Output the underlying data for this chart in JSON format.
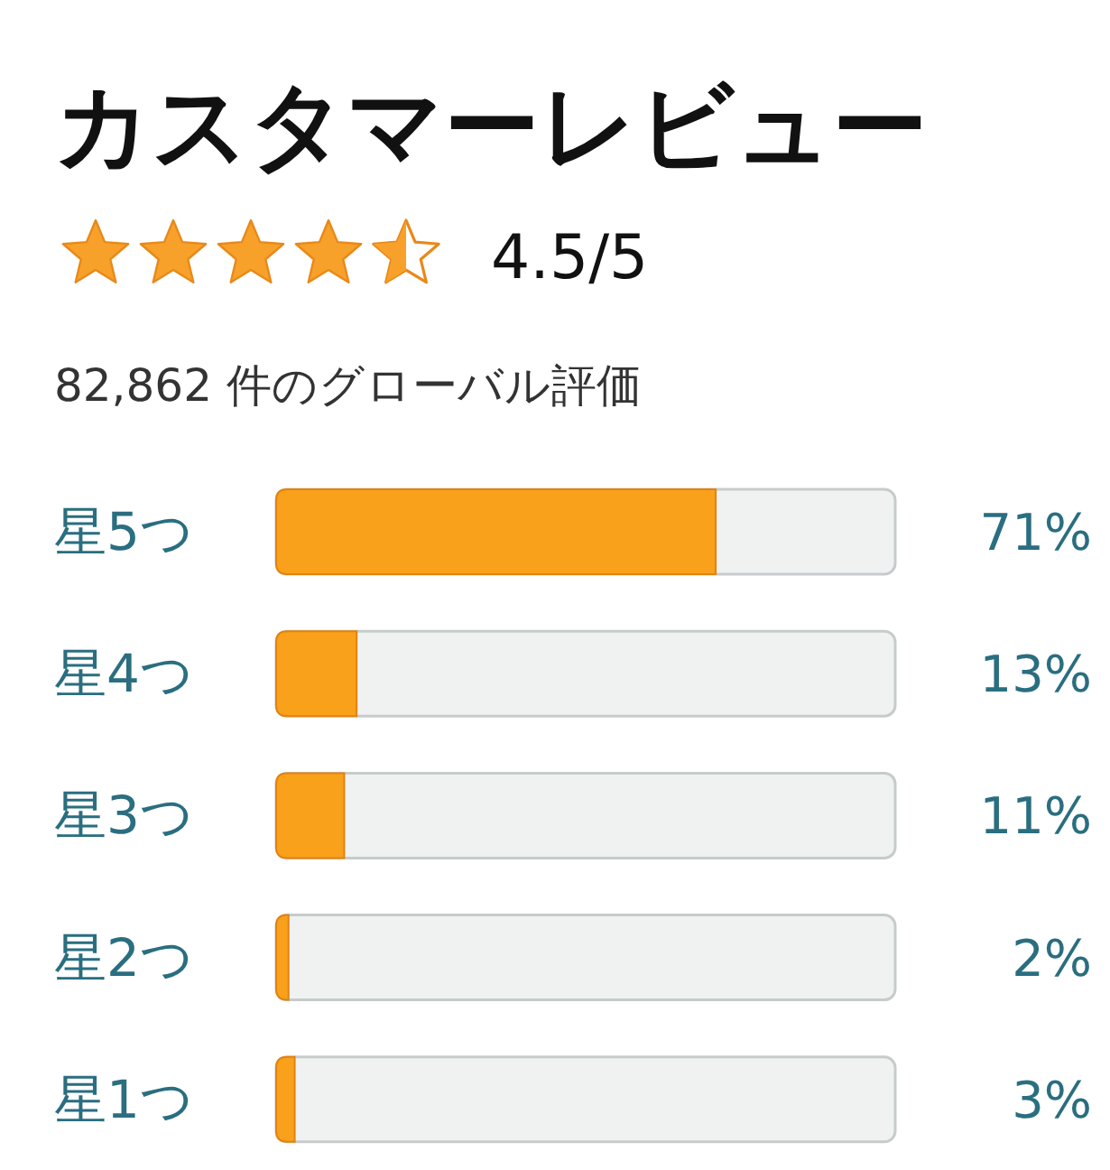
{
  "chart_data": {
    "type": "bar",
    "orientation": "horizontal",
    "title": "カスタマーレビュー",
    "subtitle": "82,862 件のグローバル評価",
    "annotations": [
      "4.5/5"
    ],
    "categories": [
      "星5つ",
      "星4つ",
      "星3つ",
      "星2つ",
      "星1つ"
    ],
    "values": [
      71,
      13,
      11,
      2,
      3
    ],
    "value_labels": [
      "71%",
      "13%",
      "11%",
      "2%",
      "3%"
    ],
    "color": "#f9a11b",
    "xlim": [
      0,
      100
    ],
    "tick_labels": "y"
  }
}
